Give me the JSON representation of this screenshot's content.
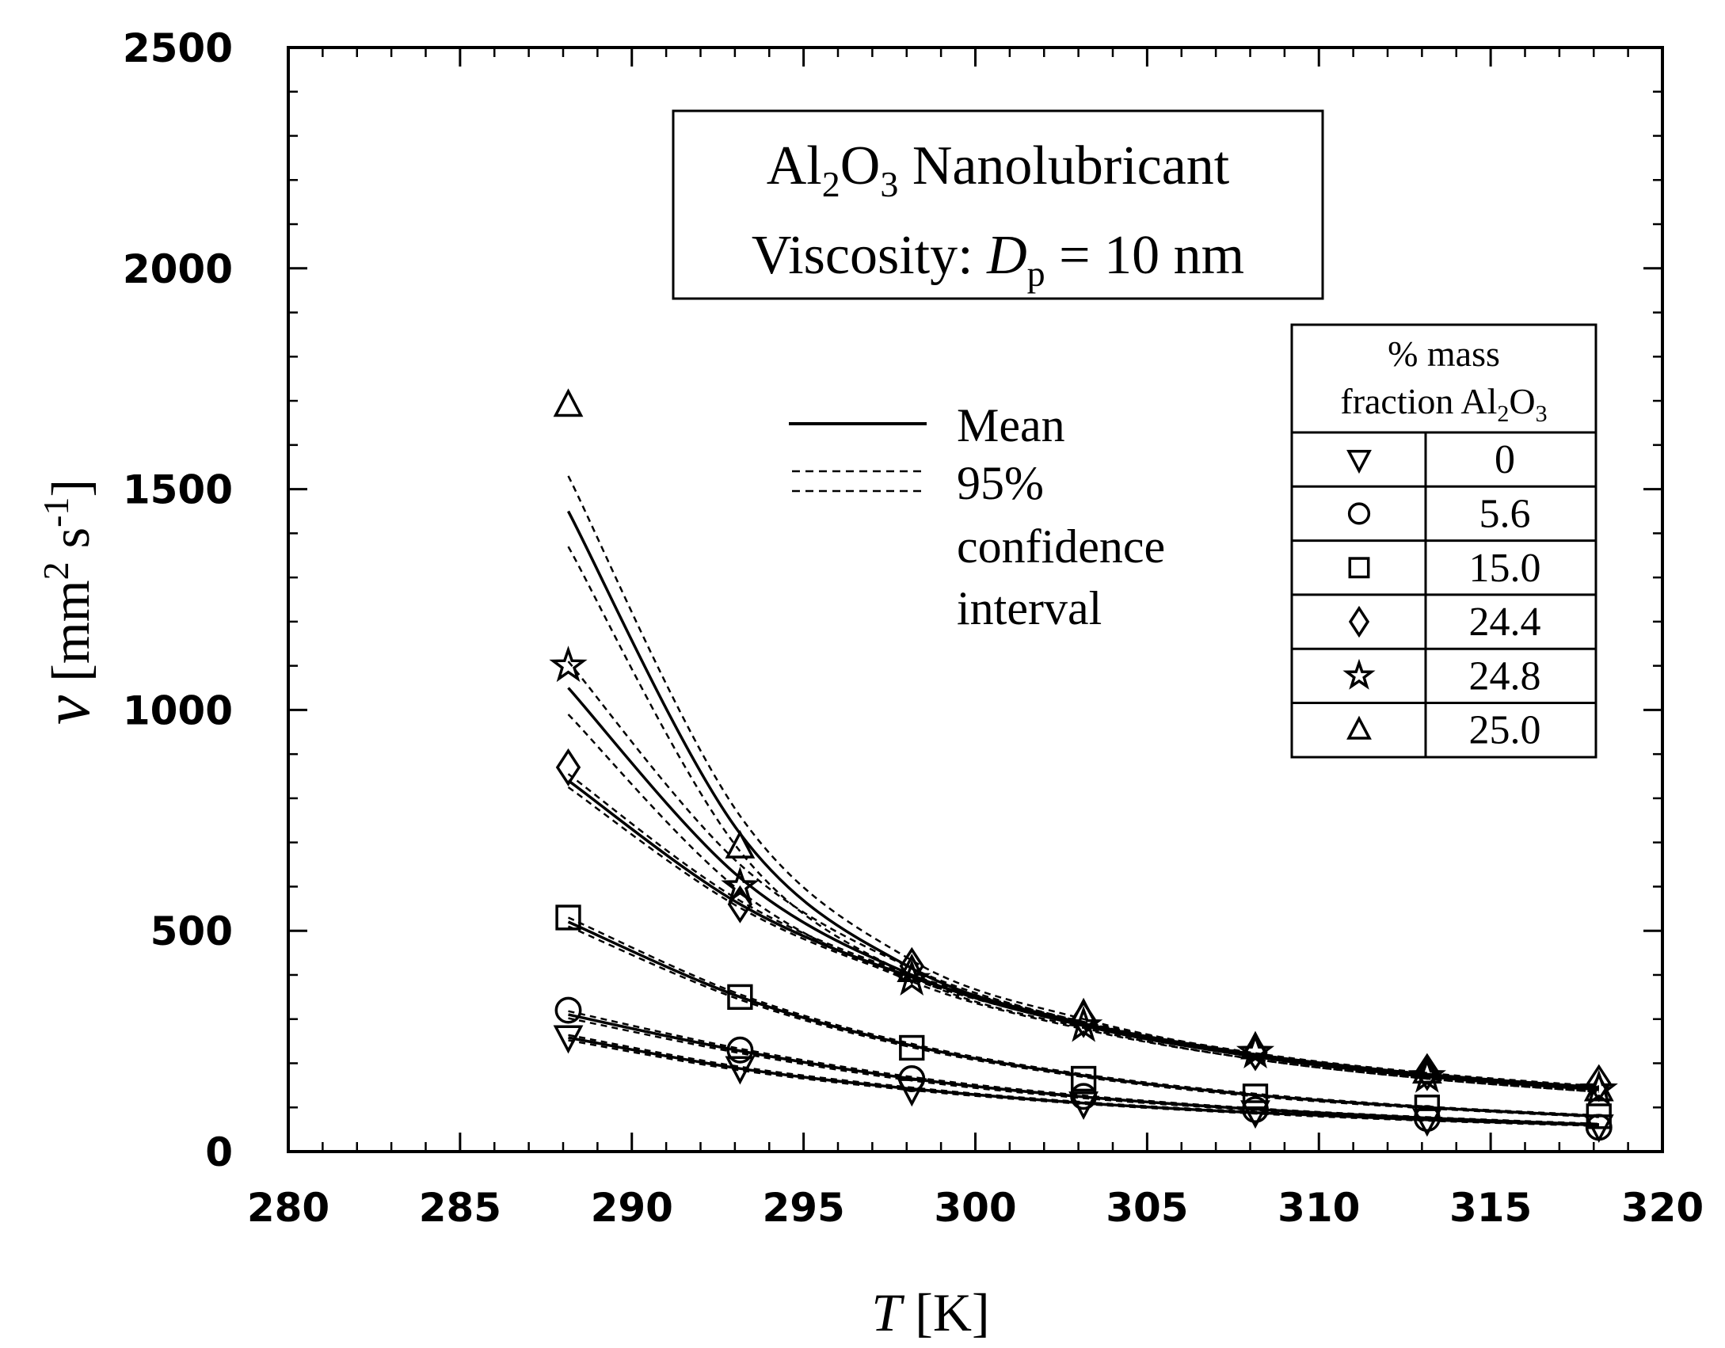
{
  "chart_data": {
    "type": "scatter",
    "title_box": {
      "line1": "Al2O3 Nanolubricant",
      "line2": "Viscosity: Dp = 10 nm",
      "line1_parts": [
        "Al",
        "2",
        "O",
        "3",
        " Nanolubricant"
      ],
      "line2_parts": [
        "Viscosity: ",
        "D",
        "p",
        " = 10 nm"
      ]
    },
    "xlabel": "T [K]",
    "xlabel_parts": [
      "T",
      " [K]"
    ],
    "ylabel": "ν [mm2 s-1]",
    "ylabel_parts": [
      "ν",
      " [mm",
      "2",
      " s",
      "-1",
      "]"
    ],
    "xlim": [
      280,
      320
    ],
    "ylim": [
      0,
      2500
    ],
    "xticks": [
      280,
      285,
      290,
      295,
      300,
      305,
      310,
      315,
      320
    ],
    "yticks": [
      0,
      500,
      1000,
      1500,
      2000,
      2500
    ],
    "x": [
      288.15,
      293.15,
      298.15,
      303.15,
      308.15,
      313.15,
      318.15
    ],
    "line_legend": {
      "mean_label": "Mean",
      "ci_label_lines": [
        "95%",
        "confidence",
        "interval"
      ]
    },
    "marker_legend": {
      "header_lines": [
        "% mass",
        "fraction Al2O3"
      ],
      "header_parts": [
        "fraction Al",
        "2",
        "O",
        "3"
      ]
    },
    "series": [
      {
        "name": "0",
        "marker": "triangle-down",
        "values": [
          260,
          190,
          140,
          110,
          90,
          72,
          58
        ]
      },
      {
        "name": "5.6",
        "marker": "circle",
        "values": [
          320,
          230,
          165,
          125,
          95,
          75,
          55
        ]
      },
      {
        "name": "15.0",
        "marker": "square",
        "values": [
          530,
          350,
          235,
          165,
          125,
          100,
          80
        ]
      },
      {
        "name": "24.4",
        "marker": "diamond",
        "values": [
          870,
          560,
          420,
          300,
          225,
          180,
          155
        ]
      },
      {
        "name": "24.8",
        "marker": "star",
        "values": [
          1100,
          600,
          390,
          285,
          225,
          170,
          140
        ]
      },
      {
        "name": "25.0",
        "marker": "triangle-up",
        "values": [
          1690,
          690,
          410,
          310,
          235,
          180,
          140
        ]
      }
    ],
    "fit_curves": [
      {
        "name": "0",
        "values": [
          258,
          188,
          142,
          110,
          88,
          72,
          60
        ],
        "ci_halfwidth": [
          6,
          4,
          3,
          2,
          2,
          2,
          2
        ]
      },
      {
        "name": "5.6",
        "values": [
          310,
          228,
          165,
          124,
          96,
          76,
          61
        ],
        "ci_halfwidth": [
          8,
          5,
          4,
          3,
          2,
          2,
          2
        ]
      },
      {
        "name": "15.0",
        "values": [
          520,
          350,
          240,
          172,
          128,
          100,
          80
        ],
        "ci_halfwidth": [
          10,
          6,
          4,
          3,
          3,
          2,
          2
        ]
      },
      {
        "name": "24.4",
        "values": [
          840,
          560,
          395,
          290,
          220,
          175,
          145
        ],
        "ci_halfwidth": [
          15,
          8,
          5,
          4,
          3,
          3,
          3
        ]
      },
      {
        "name": "24.8",
        "values": [
          1050,
          620,
          400,
          285,
          215,
          170,
          140
        ],
        "ci_halfwidth": [
          60,
          30,
          15,
          8,
          6,
          5,
          5
        ]
      },
      {
        "name": "25.0",
        "values": [
          1450,
          720,
          415,
          290,
          215,
          170,
          140
        ],
        "ci_halfwidth": [
          80,
          40,
          18,
          10,
          6,
          5,
          5
        ]
      }
    ]
  }
}
